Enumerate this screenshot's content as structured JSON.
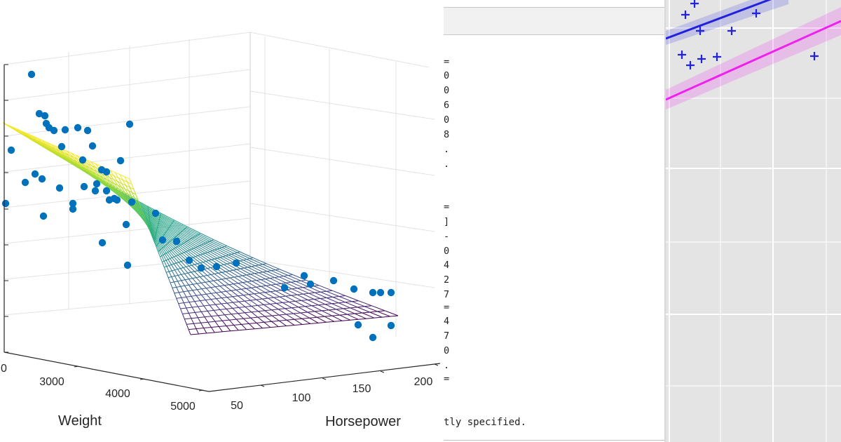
{
  "chart_data": [
    {
      "type": "scatter",
      "subtype": "3d-scatter-with-regression-surface",
      "xlabel": "Weight",
      "ylabel": "Horsepower",
      "x_ticks": [
        "3000",
        "4000",
        "5000"
      ],
      "y_ticks": [
        "50",
        "100",
        "150",
        "200"
      ],
      "z_partial_tick": "0",
      "colors": {
        "points": "#0072bd",
        "surface": "viridis",
        "grid": "#e3e3e3",
        "axis": "#262626"
      },
      "grid": true
    },
    {
      "type": "scatter",
      "subtype": "grouped-regression-lines",
      "series": [
        {
          "color": "#2222dd",
          "marker": "+"
        },
        {
          "color": "#ee22ee",
          "marker": "none"
        }
      ],
      "colors": {
        "panel_background": "#e4e4e4",
        "gridline": "#ffffff"
      },
      "grid": true
    }
  ],
  "console": {
    "right_edge_chars": [
      "=",
      "0",
      "0",
      "6",
      "0",
      "8",
      ".",
      ".",
      "=",
      "]",
      "-",
      "0",
      "4",
      "2",
      "7",
      "=",
      "4",
      "7",
      "0",
      ".",
      "="
    ],
    "footer": "tly specified."
  }
}
